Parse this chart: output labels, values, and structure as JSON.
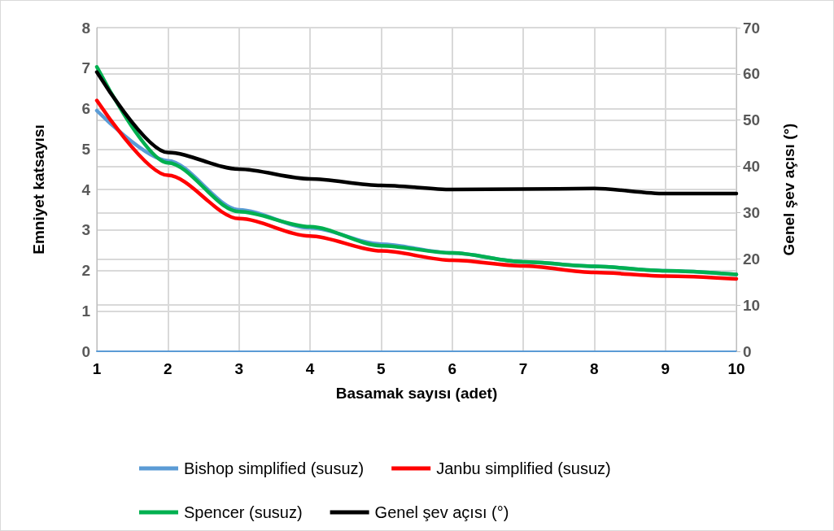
{
  "chart_data": {
    "type": "line",
    "xlabel": "Basamak sayısı (adet)",
    "ylabel": "Emniyet katsayısı",
    "y2label": "Genel şev açısı (°)",
    "x": [
      1,
      2,
      3,
      4,
      5,
      6,
      7,
      8,
      9,
      10
    ],
    "series": [
      {
        "name": "Bishop simplified (susuz)",
        "color": "#5b9bd5",
        "values": [
          5.95,
          4.71,
          3.5,
          3.05,
          2.65,
          2.43,
          2.21,
          2.1,
          1.99,
          1.9
        ]
      },
      {
        "name": "Janbu simplified (susuz)",
        "color": "#ff0000",
        "values": [
          6.2,
          4.35,
          3.28,
          2.85,
          2.48,
          2.25,
          2.11,
          1.95,
          1.86,
          1.79
        ]
      },
      {
        "name": "Spencer (susuz)",
        "color": "#00b050",
        "values": [
          7.03,
          4.66,
          3.45,
          3.08,
          2.61,
          2.43,
          2.21,
          2.1,
          1.99,
          1.9
        ]
      },
      {
        "name": "Genel şev açısı (°)",
        "color": "#000000",
        "axis": "y2",
        "values": [
          60.4,
          43,
          39.4,
          37.3,
          35.9,
          35,
          35.1,
          35.2,
          34.1,
          34.1
        ]
      }
    ],
    "xlim": [
      1,
      10
    ],
    "xticks": [
      1,
      2,
      3,
      4,
      5,
      6,
      7,
      8,
      9,
      10
    ],
    "ylim": [
      0,
      8
    ],
    "yticks": [
      0,
      1,
      2,
      3,
      4,
      5,
      6,
      7,
      8
    ],
    "y2lim": [
      0,
      70
    ],
    "y2ticks": [
      0,
      10,
      20,
      30,
      40,
      50,
      60,
      70
    ],
    "grid": true,
    "legend": "bottom",
    "marker": "none",
    "line_style": "solid"
  }
}
